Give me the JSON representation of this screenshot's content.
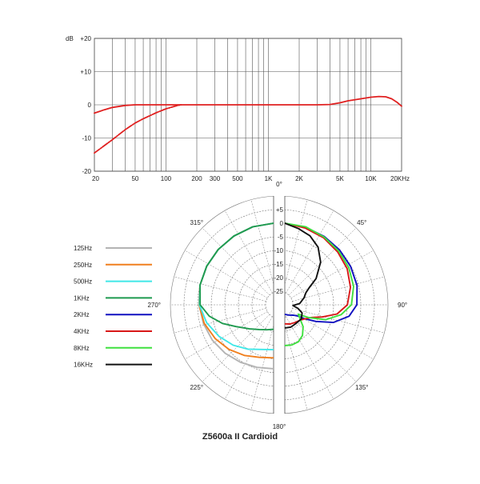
{
  "title": "Z5600a II Cardioid",
  "chart_data": [
    {
      "type": "line",
      "xscale": "log",
      "xlim": [
        20,
        20000
      ],
      "ylim": [
        -20,
        20
      ],
      "yunit": "dB",
      "y_ticks": [
        {
          "value": 20,
          "label": "+20"
        },
        {
          "value": 10,
          "label": "+10"
        },
        {
          "value": 0,
          "label": "0"
        },
        {
          "value": -10,
          "label": "-10"
        },
        {
          "value": -20,
          "label": "-20"
        }
      ],
      "x_ticks": [
        {
          "value": 20,
          "label": "20"
        },
        {
          "value": 50,
          "label": "50"
        },
        {
          "value": 100,
          "label": "100"
        },
        {
          "value": 200,
          "label": "200"
        },
        {
          "value": 300,
          "label": "300"
        },
        {
          "value": 500,
          "label": "500"
        },
        {
          "value": 1000,
          "label": "1K"
        },
        {
          "value": 2000,
          "label": "2K"
        },
        {
          "value": 5000,
          "label": "5K"
        },
        {
          "value": 10000,
          "label": "10K"
        },
        {
          "value": 20000,
          "label": "20KHz"
        }
      ],
      "grid": true,
      "series": [
        {
          "color": "#e02020",
          "style": "solid",
          "points": [
            [
              20,
              -2.5
            ],
            [
              25,
              -1.5
            ],
            [
              30,
              -0.8
            ],
            [
              40,
              -0.2
            ],
            [
              50,
              0
            ],
            [
              100,
              0
            ],
            [
              300,
              0
            ],
            [
              1000,
              0
            ],
            [
              2000,
              0
            ],
            [
              3000,
              0
            ],
            [
              4000,
              0.1
            ],
            [
              5000,
              0.6
            ],
            [
              6000,
              1.2
            ],
            [
              8000,
              1.8
            ],
            [
              10000,
              2.3
            ],
            [
              12000,
              2.5
            ],
            [
              14000,
              2.4
            ],
            [
              16000,
              1.8
            ],
            [
              18000,
              0.8
            ],
            [
              20000,
              -0.4
            ]
          ]
        },
        {
          "color": "#e02020",
          "style": "dashdot",
          "points": [
            [
              20,
              -14.5
            ],
            [
              30,
              -10.5
            ],
            [
              40,
              -7.5
            ],
            [
              50,
              -5.5
            ],
            [
              60,
              -4.2
            ],
            [
              80,
              -2.4
            ],
            [
              100,
              -1.2
            ],
            [
              130,
              -0.2
            ],
            [
              140,
              0
            ]
          ]
        }
      ]
    },
    {
      "type": "polar",
      "r_ticks": [
        "+5",
        "0",
        "-5",
        "-10",
        "-15",
        "-20",
        "-25"
      ],
      "r_range": [
        -30,
        5
      ],
      "angle_labels": [
        {
          "deg": 0,
          "label": "0°"
        },
        {
          "deg": 45,
          "label": "45°"
        },
        {
          "deg": 90,
          "label": "90°"
        },
        {
          "deg": 135,
          "label": "135°"
        },
        {
          "deg": 180,
          "label": "180°"
        },
        {
          "deg": 225,
          "label": "225°"
        },
        {
          "deg": 270,
          "label": "270°"
        },
        {
          "deg": 315,
          "label": "315°"
        }
      ],
      "legend_position": "left",
      "series": [
        {
          "name": "125Hz",
          "color": "#b4b4b4",
          "side": "left",
          "points": [
            [
              0,
              0
            ],
            [
              15,
              -0.3
            ],
            [
              30,
              -0.8
            ],
            [
              45,
              -1.2
            ],
            [
              60,
              -1.6
            ],
            [
              75,
              -2.0
            ],
            [
              90,
              -2.6
            ],
            [
              105,
              -3.3
            ],
            [
              120,
              -4.0
            ],
            [
              135,
              -4.8
            ],
            [
              150,
              -5.6
            ],
            [
              165,
              -6.2
            ],
            [
              180,
              -6.5
            ]
          ]
        },
        {
          "name": "250Hz",
          "color": "#f07f1e",
          "side": "left",
          "points": [
            [
              0,
              0
            ],
            [
              15,
              -0.3
            ],
            [
              30,
              -0.8
            ],
            [
              45,
              -1.2
            ],
            [
              60,
              -1.6
            ],
            [
              75,
              -2.0
            ],
            [
              90,
              -2.6
            ],
            [
              105,
              -3.6
            ],
            [
              120,
              -5.2
            ],
            [
              135,
              -6.8
            ],
            [
              150,
              -8.5
            ],
            [
              165,
              -10
            ],
            [
              180,
              -10.5
            ]
          ]
        },
        {
          "name": "500Hz",
          "color": "#3fe7e7",
          "side": "left",
          "points": [
            [
              0,
              0
            ],
            [
              15,
              -0.3
            ],
            [
              30,
              -0.8
            ],
            [
              45,
              -1.2
            ],
            [
              60,
              -1.6
            ],
            [
              75,
              -2.0
            ],
            [
              90,
              -2.7
            ],
            [
              105,
              -4.5
            ],
            [
              120,
              -6.8
            ],
            [
              135,
              -9.0
            ],
            [
              150,
              -11.2
            ],
            [
              165,
              -13.0
            ],
            [
              180,
              -13.5
            ]
          ]
        },
        {
          "name": "1KHz",
          "color": "#1f9a4f",
          "side": "left",
          "points": [
            [
              0,
              0
            ],
            [
              15,
              -0.3
            ],
            [
              30,
              -0.8
            ],
            [
              45,
              -1.2
            ],
            [
              60,
              -1.6
            ],
            [
              75,
              -2.0
            ],
            [
              90,
              -3.0
            ],
            [
              100,
              -6.0
            ],
            [
              110,
              -10.0
            ],
            [
              120,
              -14.0
            ],
            [
              135,
              -17.5
            ],
            [
              150,
              -19.5
            ],
            [
              165,
              -20.5
            ],
            [
              180,
              -21
            ]
          ]
        },
        {
          "name": "2KHz",
          "color": "#1010c0",
          "side": "right",
          "points": [
            [
              0,
              0
            ],
            [
              15,
              -0.5
            ],
            [
              30,
              -1.0
            ],
            [
              45,
              -1.5
            ],
            [
              60,
              -2.0
            ],
            [
              75,
              -2.5
            ],
            [
              90,
              -3.5
            ],
            [
              100,
              -6.0
            ],
            [
              110,
              -11.0
            ],
            [
              118,
              -17.0
            ],
            [
              125,
              -21.0
            ],
            [
              130,
              -23.5
            ],
            [
              140,
              -25.0
            ],
            [
              160,
              -26.0
            ],
            [
              180,
              -26.5
            ]
          ]
        },
        {
          "name": "4KHz",
          "color": "#d81818",
          "side": "right",
          "points": [
            [
              0,
              0
            ],
            [
              15,
              -0.8
            ],
            [
              30,
              -1.5
            ],
            [
              45,
              -2.5
            ],
            [
              60,
              -3.5
            ],
            [
              75,
              -5.0
            ],
            [
              90,
              -7.0
            ],
            [
              100,
              -10.5
            ],
            [
              108,
              -15.5
            ],
            [
              115,
              -19.0
            ],
            [
              125,
              -21.0
            ],
            [
              135,
              -22.0
            ],
            [
              150,
              -22.5
            ],
            [
              165,
              -22.7
            ],
            [
              180,
              -23
            ]
          ]
        },
        {
          "name": "8KHz",
          "color": "#3fe03f",
          "side": "right",
          "points": [
            [
              0,
              0
            ],
            [
              15,
              -0.3
            ],
            [
              30,
              -1.2
            ],
            [
              45,
              -2.0
            ],
            [
              60,
              -2.8
            ],
            [
              75,
              -3.8
            ],
            [
              90,
              -5.5
            ],
            [
              100,
              -9.0
            ],
            [
              110,
              -14.0
            ],
            [
              118,
              -20.0
            ],
            [
              125,
              -24.0
            ],
            [
              130,
              -23.0
            ],
            [
              140,
              -19.5
            ],
            [
              150,
              -17.0
            ],
            [
              160,
              -15.5
            ],
            [
              170,
              -15.0
            ],
            [
              180,
              -15
            ]
          ]
        },
        {
          "name": "16KHz",
          "color": "#111111",
          "side": "right",
          "points": [
            [
              0,
              0
            ],
            [
              10,
              -1.5
            ],
            [
              20,
              -3.0
            ],
            [
              30,
              -5.5
            ],
            [
              40,
              -9.5
            ],
            [
              50,
              -15.0
            ],
            [
              55,
              -19.0
            ],
            [
              60,
              -21.0
            ],
            [
              70,
              -22.5
            ],
            [
              85,
              -24.5
            ],
            [
              95,
              -27.0
            ],
            [
              105,
              -25.0
            ],
            [
              115,
              -23.0
            ],
            [
              130,
              -22.0
            ],
            [
              150,
              -22.0
            ],
            [
              165,
              -21.5
            ],
            [
              180,
              -21.5
            ]
          ]
        }
      ]
    }
  ]
}
